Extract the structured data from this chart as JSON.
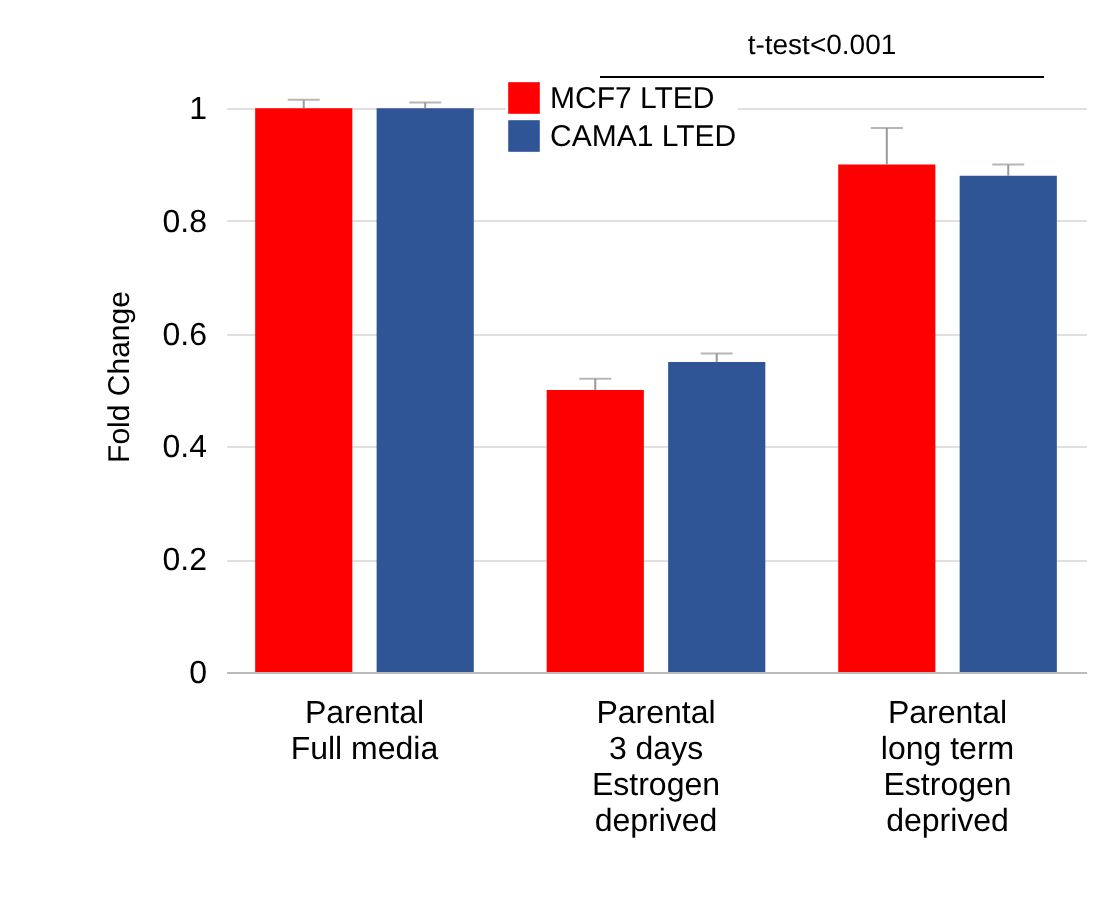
{
  "chart_data": {
    "type": "bar",
    "ylabel": "Fold Change",
    "categories": [
      "Parental\nFull media",
      "Parental\n3 days\nEstrogen\ndeprived",
      "Parental\nlong term\nEstrogen\ndeprived"
    ],
    "series": [
      {
        "name": "MCF7 LTED",
        "color": "#ff0000",
        "values": [
          1.0,
          0.5,
          0.9
        ],
        "errors": [
          [
            1.0,
            1.015
          ],
          [
            0.5,
            0.52
          ],
          [
            0.9,
            0.965
          ]
        ]
      },
      {
        "name": "CAMA1 LTED",
        "color": "#2f5597",
        "values": [
          1.0,
          0.55,
          0.88
        ],
        "errors": [
          [
            1.0,
            1.01
          ],
          [
            0.55,
            0.565
          ],
          [
            0.88,
            0.9
          ]
        ]
      }
    ],
    "ylim": [
      0,
      1.05
    ],
    "yticks": [
      0,
      0.2,
      0.4,
      0.6,
      0.8,
      1
    ],
    "grid": "y",
    "legend": "top",
    "annotations": [
      "t-test<0.001"
    ]
  }
}
